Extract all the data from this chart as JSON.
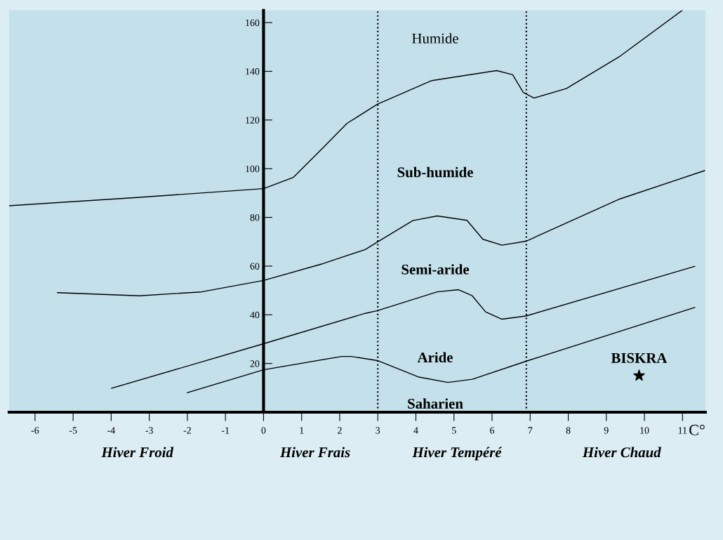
{
  "chart_data": {
    "type": "line",
    "xlabel": "C°",
    "xlim": [
      -6.68,
      11.6
    ],
    "ylim": [
      0,
      165
    ],
    "xticks": [
      -6,
      -5,
      -4,
      -3,
      -2,
      -1,
      0,
      1,
      2,
      3,
      4,
      5,
      6,
      7,
      8,
      9,
      10,
      11
    ],
    "yticks": [
      {
        "value": 0,
        "label": null
      },
      20,
      40,
      60,
      80,
      100,
      120,
      140,
      160
    ],
    "grid": false,
    "legend": false,
    "marker": "none",
    "line_style": "solid",
    "series": [
      {
        "color": "#000000",
        "x": [
          -6.68,
          -3.39,
          0,
          0.78,
          1.56,
          2.19,
          2.99,
          4.42,
          6.12,
          6.54,
          6.82,
          7.1,
          7.95,
          9.36,
          10.99
        ],
        "values": [
          84.8,
          88.1,
          91.8,
          96.4,
          108.6,
          118.6,
          126.5,
          136.2,
          140.3,
          138.6,
          131.3,
          129,
          132.9,
          146.2,
          165
        ]
      },
      {
        "color": "#000000",
        "x": [
          -5.41,
          -3.26,
          -1.63,
          0,
          1.56,
          2.67,
          2.99,
          3.92,
          4.56,
          5.34,
          5.76,
          6.26,
          6.89,
          9.36,
          11.58
        ],
        "values": [
          49.1,
          47.8,
          49.4,
          54.1,
          61.0,
          66.8,
          69.9,
          78.7,
          80.6,
          78.8,
          71.0,
          68.6,
          70.2,
          87.6,
          99.2
        ]
      },
      {
        "color": "#000000",
        "x": [
          -3.99,
          0,
          2.67,
          2.99,
          4.56,
          5.12,
          5.48,
          5.83,
          6.26,
          6.89,
          11.32
        ],
        "values": [
          9.8,
          28.1,
          40.6,
          41.7,
          49.4,
          50.3,
          47.8,
          41.2,
          38.2,
          39.5,
          59.9
        ]
      },
      {
        "color": "#000000",
        "x": [
          -2.0,
          0,
          2.05,
          2.3,
          2.99,
          4.06,
          4.84,
          5.48,
          6.89,
          11.32
        ],
        "values": [
          8.0,
          17.4,
          22.9,
          22.9,
          21.2,
          14.5,
          12.2,
          13.5,
          20.9,
          43.0
        ]
      },
      {
        "type": "scatter",
        "name": "BISKRA",
        "marker": "star",
        "color": "#000000",
        "x": [
          9.86
        ],
        "values": [
          15.0
        ]
      }
    ],
    "ref_lines": [
      {
        "axis": "x",
        "value": 3,
        "color": "#000000",
        "line_style": "dotted"
      },
      {
        "axis": "x",
        "value": 6.9,
        "color": "#000000",
        "line_style": "dotted"
      }
    ],
    "annotations": [
      "Humide",
      "Sub-humide",
      "Semi-aride",
      "Aride",
      "Saharien",
      "Hiver Froid",
      "Hiver Frais",
      "Hiver Tempéré",
      "Hiver Chaud"
    ]
  }
}
